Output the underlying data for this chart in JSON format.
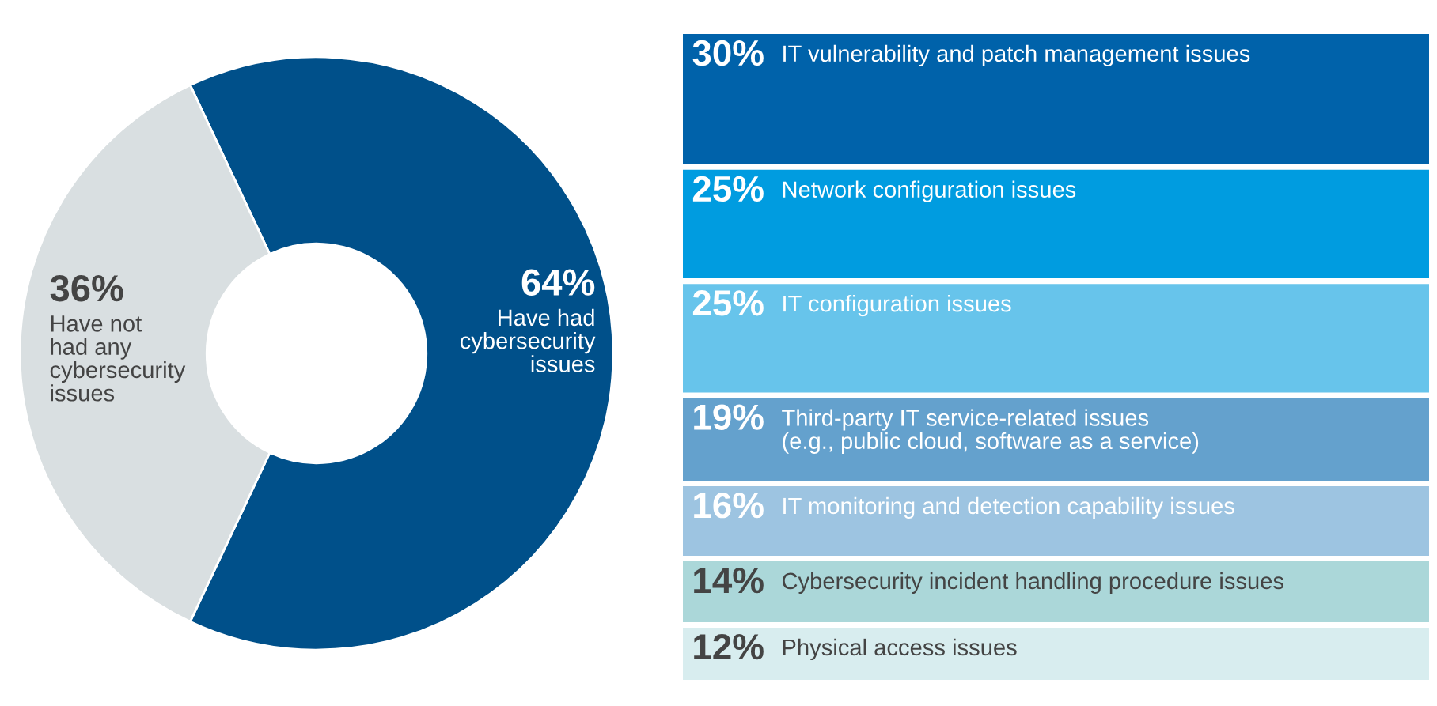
{
  "chart_data": [
    {
      "type": "donut",
      "categories": [
        "Have had\ncybersecurity\nissues",
        "Have not\nhad any\ncybersecurity\nissues"
      ],
      "values": [
        64,
        36
      ],
      "value_labels": [
        "64%",
        "36%"
      ],
      "colors": [
        "#00508a",
        "#d9dfe1"
      ]
    },
    {
      "type": "other",
      "categories": [
        "IT vulnerability and patch management issues",
        "Network configuration issues",
        "IT configuration issues",
        "Third-party IT service-related issues\n(e.g., public cloud, software as a service)",
        "IT monitoring and detection capability issues",
        "Cybersecurity incident handling procedure issues",
        "Physical access issues"
      ],
      "values": [
        30,
        25,
        25,
        19,
        16,
        14,
        12
      ],
      "value_labels": [
        "30%",
        "25%",
        "25%",
        "19%",
        "16%",
        "14%",
        "12%"
      ],
      "colors": [
        "#0062aa",
        "#009ce0",
        "#67c4eb",
        "#64a1cd",
        "#9dc4e1",
        "#abd7d9",
        "#d8edef"
      ]
    }
  ]
}
